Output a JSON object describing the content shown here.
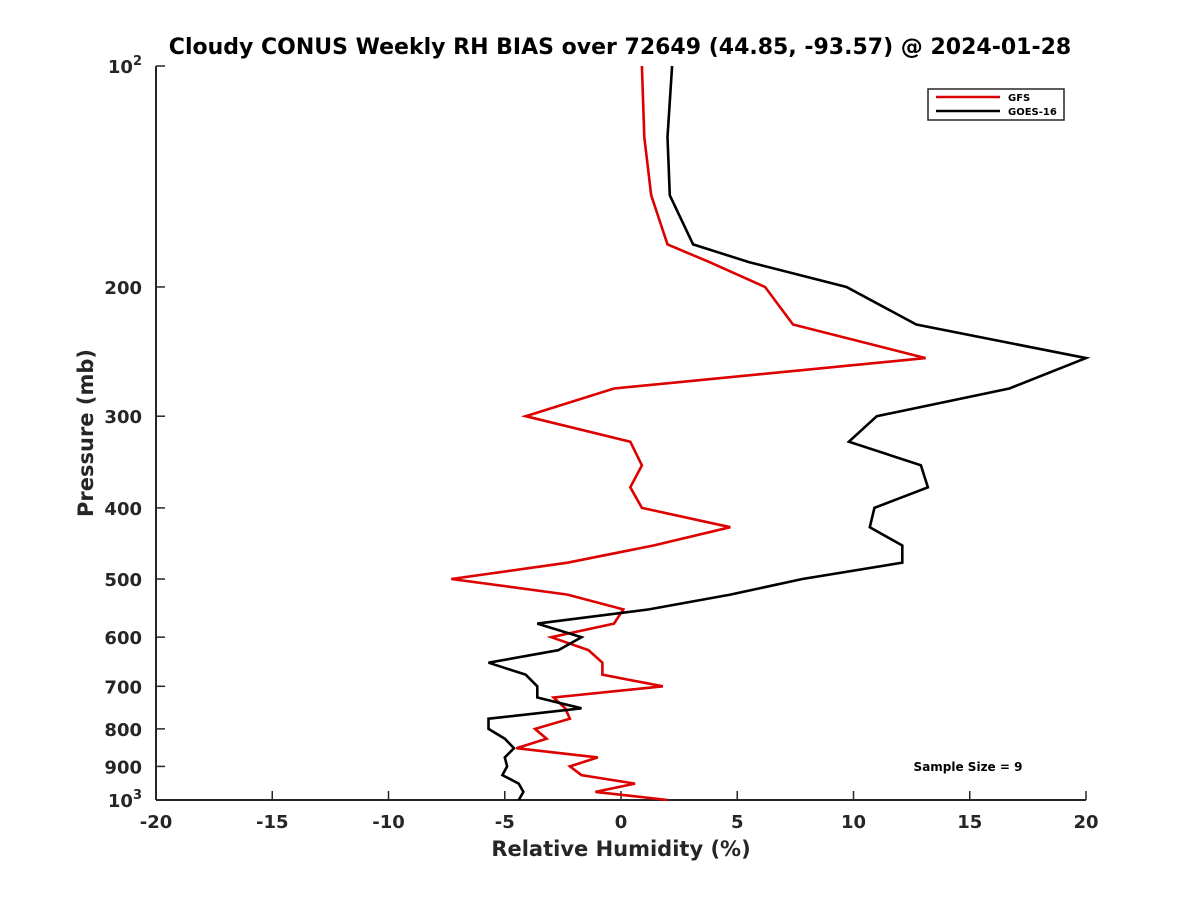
{
  "chart_data": {
    "type": "line",
    "title": "Cloudy CONUS Weekly RH BIAS over 72649 (44.85, -93.57) @ 2024-01-28",
    "xlabel": "Relative Humidity (%)",
    "ylabel": "Pressure (mb)",
    "xlim": [
      -20,
      20
    ],
    "ylim": [
      100,
      1000
    ],
    "y_scale": "log",
    "y_reversed": true,
    "x_ticks": [
      "-20",
      "-15",
      "-10",
      "-5",
      "0",
      "5",
      "10",
      "15",
      "20"
    ],
    "y_ticks": [
      {
        "value": 100,
        "base": "10",
        "exp": "2"
      },
      {
        "value": 200,
        "label": "200"
      },
      {
        "value": 300,
        "label": "300"
      },
      {
        "value": 400,
        "label": "400"
      },
      {
        "value": 500,
        "label": "500"
      },
      {
        "value": 600,
        "label": "600"
      },
      {
        "value": 700,
        "label": "700"
      },
      {
        "value": 800,
        "label": "800"
      },
      {
        "value": 900,
        "label": "900"
      },
      {
        "value": 1000,
        "base": "10",
        "exp": "3"
      }
    ],
    "legend": {
      "position": "top-right"
    },
    "annotation": "Sample Size = 9",
    "series": [
      {
        "name": "GFS",
        "color": "#dd0000",
        "points": [
          {
            "p": 100,
            "x": 0.9
          },
          {
            "p": 125,
            "x": 1.0
          },
          {
            "p": 150,
            "x": 1.3
          },
          {
            "p": 175,
            "x": 2.0
          },
          {
            "p": 185,
            "x": 3.8
          },
          {
            "p": 200,
            "x": 6.2
          },
          {
            "p": 225,
            "x": 7.4
          },
          {
            "p": 250,
            "x": 13.1
          },
          {
            "p": 275,
            "x": -0.3
          },
          {
            "p": 300,
            "x": -4.1
          },
          {
            "p": 325,
            "x": 0.4
          },
          {
            "p": 350,
            "x": 0.9
          },
          {
            "p": 375,
            "x": 0.4
          },
          {
            "p": 400,
            "x": 0.9
          },
          {
            "p": 425,
            "x": 4.7
          },
          {
            "p": 450,
            "x": 1.4
          },
          {
            "p": 475,
            "x": -2.3
          },
          {
            "p": 500,
            "x": -7.3
          },
          {
            "p": 525,
            "x": -2.3
          },
          {
            "p": 550,
            "x": 0.1
          },
          {
            "p": 575,
            "x": -0.3
          },
          {
            "p": 600,
            "x": -3.0
          },
          {
            "p": 625,
            "x": -1.4
          },
          {
            "p": 650,
            "x": -0.8
          },
          {
            "p": 675,
            "x": -0.8
          },
          {
            "p": 700,
            "x": 1.8
          },
          {
            "p": 725,
            "x": -2.9
          },
          {
            "p": 750,
            "x": -2.4
          },
          {
            "p": 775,
            "x": -2.2
          },
          {
            "p": 800,
            "x": -3.7
          },
          {
            "p": 825,
            "x": -3.2
          },
          {
            "p": 850,
            "x": -4.5
          },
          {
            "p": 875,
            "x": -1.0
          },
          {
            "p": 900,
            "x": -2.2
          },
          {
            "p": 925,
            "x": -1.7
          },
          {
            "p": 950,
            "x": 0.6
          },
          {
            "p": 975,
            "x": -1.1
          },
          {
            "p": 1000,
            "x": 2.0
          }
        ]
      },
      {
        "name": "GOES-16",
        "color": "#000000",
        "points": [
          {
            "p": 100,
            "x": 2.2
          },
          {
            "p": 125,
            "x": 2.0
          },
          {
            "p": 150,
            "x": 2.1
          },
          {
            "p": 175,
            "x": 3.1
          },
          {
            "p": 185,
            "x": 5.5
          },
          {
            "p": 200,
            "x": 9.7
          },
          {
            "p": 225,
            "x": 12.7
          },
          {
            "p": 250,
            "x": 20.0
          },
          {
            "p": 275,
            "x": 16.7
          },
          {
            "p": 300,
            "x": 11.0
          },
          {
            "p": 325,
            "x": 9.8
          },
          {
            "p": 350,
            "x": 12.9
          },
          {
            "p": 375,
            "x": 13.2
          },
          {
            "p": 400,
            "x": 10.9
          },
          {
            "p": 425,
            "x": 10.7
          },
          {
            "p": 450,
            "x": 12.1
          },
          {
            "p": 475,
            "x": 12.1
          },
          {
            "p": 500,
            "x": 7.8
          },
          {
            "p": 525,
            "x": 4.7
          },
          {
            "p": 550,
            "x": 1.2
          },
          {
            "p": 575,
            "x": -3.6
          },
          {
            "p": 600,
            "x": -1.7
          },
          {
            "p": 625,
            "x": -2.7
          },
          {
            "p": 650,
            "x": -5.7
          },
          {
            "p": 675,
            "x": -4.1
          },
          {
            "p": 700,
            "x": -3.6
          },
          {
            "p": 725,
            "x": -3.6
          },
          {
            "p": 750,
            "x": -1.7
          },
          {
            "p": 775,
            "x": -5.7
          },
          {
            "p": 800,
            "x": -5.7
          },
          {
            "p": 825,
            "x": -5.0
          },
          {
            "p": 850,
            "x": -4.6
          },
          {
            "p": 875,
            "x": -5.0
          },
          {
            "p": 900,
            "x": -4.9
          },
          {
            "p": 925,
            "x": -5.1
          },
          {
            "p": 950,
            "x": -4.4
          },
          {
            "p": 975,
            "x": -4.2
          },
          {
            "p": 1000,
            "x": -4.4
          }
        ]
      }
    ]
  }
}
